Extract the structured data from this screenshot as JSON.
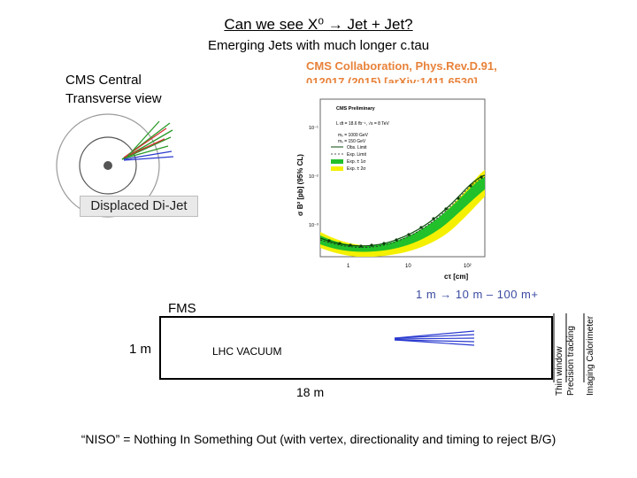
{
  "title": "Can we see X⁰ → Jet + Jet?",
  "subtitle": "Emerging Jets with much longer c.tau",
  "reference": {
    "line1": "CMS Collaboration, Phys.Rev.D.91,",
    "line2": "012017 (2015) [arXiv:1411.6530],"
  },
  "event_display": {
    "label_line1": "CMS Central",
    "label_line2": "Transverse view",
    "caption": "Displaced Di-Jet"
  },
  "plot": {
    "header": "CMS Preliminary",
    "lumi": "L dt = 18.6 fb⁻¹, √s = 8 TeV",
    "legend": [
      "mₓ = 1000 GeV",
      "mₓ = 150 GeV",
      "Obs. Limit",
      "Exp. Limit",
      "Exp. ± 1σ",
      "Exp. ± 2σ"
    ],
    "ylabel": "σ B² [pb] (95% CL)",
    "xlabel": "cτ [cm]",
    "xticks": [
      "1",
      "10",
      "10²"
    ],
    "yticks": [
      "10⁻¹",
      "10⁻²",
      "10⁻³"
    ],
    "colors": {
      "band1": "#22c02a",
      "band2": "#f4f000"
    }
  },
  "detector": {
    "fms": "FMS",
    "one_m": "1 m",
    "vacuum": "LHC VACUUM",
    "length": "18 m",
    "distance": "1 m → 10 m – 100 m+",
    "layers": [
      "Thin window",
      "Precision tracking",
      "Imaging Calorimeter"
    ]
  },
  "footer": "“NISO” = Nothing In Something Out (with vertex, directionality and timing to reject B/G)"
}
